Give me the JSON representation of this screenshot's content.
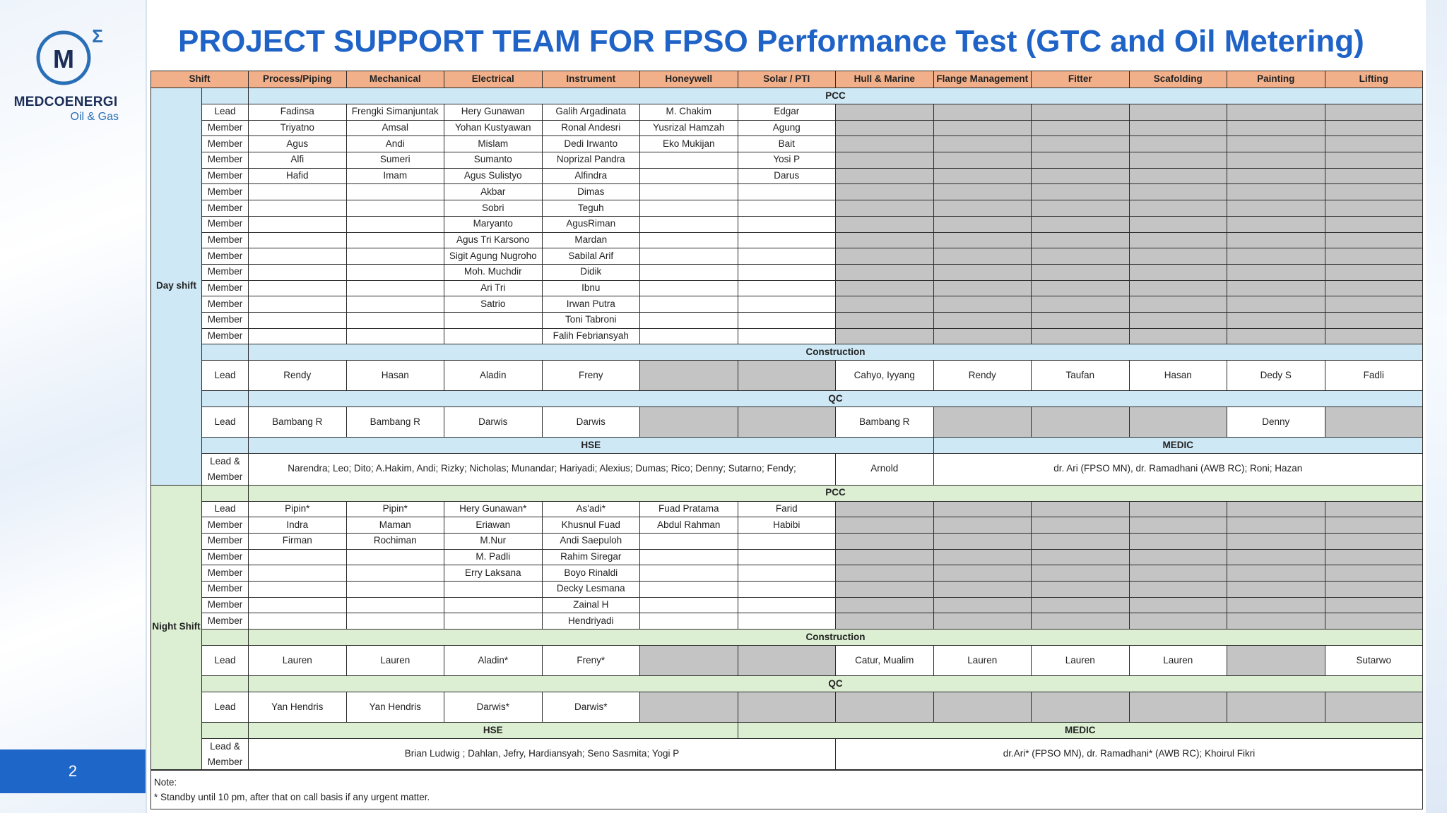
{
  "title": "PROJECT SUPPORT TEAM FOR FPSO Performance Test (GTC and Oil Metering)",
  "logo": {
    "name": "MEDCOENERGI",
    "sub": "Oil & Gas",
    "mark": "M"
  },
  "page_number": "2",
  "columns": [
    "Shift",
    "Process/Piping",
    "Mechanical",
    "Electrical",
    "Instrument",
    "Honeywell",
    "Solar / PTI",
    "Hull & Marine",
    "Flange Management",
    "Fitter",
    "Scafolding",
    "Painting",
    "Lifting"
  ],
  "day": {
    "shift_label": "Day shift",
    "pcc_title": "PCC",
    "pcc_rows": [
      {
        "role": "Lead",
        "cells": [
          "Fadinsa",
          "Frengki Simanjuntak",
          "Hery Gunawan",
          "Galih Argadinata",
          "M. Chakim",
          "Edgar"
        ]
      },
      {
        "role": "Member",
        "cells": [
          "Triyatno",
          "Amsal",
          "Yohan Kustyawan",
          "Ronal Andesri",
          "Yusrizal Hamzah",
          "Agung"
        ]
      },
      {
        "role": "Member",
        "cells": [
          "Agus",
          "Andi",
          "Mislam",
          "Dedi Irwanto",
          "Eko Mukijan",
          "Bait"
        ]
      },
      {
        "role": "Member",
        "cells": [
          "Alfi",
          "Sumeri",
          "Sumanto",
          "Noprizal Pandra",
          "",
          "Yosi P"
        ]
      },
      {
        "role": "Member",
        "cells": [
          "Hafid",
          "Imam",
          "Agus Sulistyo",
          "Alfindra",
          "",
          "Darus"
        ]
      },
      {
        "role": "Member",
        "cells": [
          "",
          "",
          "Akbar",
          "Dimas",
          "",
          ""
        ]
      },
      {
        "role": "Member",
        "cells": [
          "",
          "",
          "Sobri",
          "Teguh",
          "",
          ""
        ]
      },
      {
        "role": "Member",
        "cells": [
          "",
          "",
          "Maryanto",
          "AgusRiman",
          "",
          ""
        ]
      },
      {
        "role": "Member",
        "cells": [
          "",
          "",
          "Agus Tri Karsono",
          "Mardan",
          "",
          ""
        ]
      },
      {
        "role": "Member",
        "cells": [
          "",
          "",
          "Sigit Agung Nugroho",
          "Sabilal Arif",
          "",
          ""
        ]
      },
      {
        "role": "Member",
        "cells": [
          "",
          "",
          "Moh. Muchdir",
          "Didik",
          "",
          ""
        ]
      },
      {
        "role": "Member",
        "cells": [
          "",
          "",
          "Ari Tri",
          "Ibnu",
          "",
          ""
        ]
      },
      {
        "role": "Member",
        "cells": [
          "",
          "",
          "Satrio",
          "Irwan Putra",
          "",
          ""
        ]
      },
      {
        "role": "Member",
        "cells": [
          "",
          "",
          "",
          "Toni Tabroni",
          "",
          ""
        ]
      },
      {
        "role": "Member",
        "cells": [
          "",
          "",
          "",
          "Falih Febriansyah",
          "",
          ""
        ]
      }
    ],
    "construction_title": "Construction",
    "construction_lead": {
      "role": "Lead",
      "cells": [
        "Rendy",
        "Hasan",
        "Aladin",
        "Freny",
        "",
        "",
        "Cahyo, Iyyang",
        "Rendy",
        "Taufan",
        "Hasan",
        "Dedy S",
        "Fadli"
      ]
    },
    "qc_title": "QC",
    "qc_lead": {
      "role": "Lead",
      "cells": [
        "Bambang R",
        "Bambang R",
        "Darwis",
        "Darwis",
        "",
        "",
        "Bambang R",
        "",
        "",
        "",
        "Denny",
        ""
      ]
    },
    "hse_title": "HSE",
    "medic_title": "MEDIC",
    "hse_role": "Lead & Member",
    "hse_text": "Narendra; Leo; Dito; A.Hakim, Andi; Rizky; Nicholas; Munandar; Hariyadi; Alexius; Dumas; Rico; Denny; Sutarno; Fendy;",
    "hull_text": "Arnold",
    "medic_text": "dr. Ari (FPSO MN), dr. Ramadhani (AWB RC); Roni; Hazan"
  },
  "night": {
    "shift_label": "Night Shift",
    "pcc_title": "PCC",
    "pcc_rows": [
      {
        "role": "Lead",
        "cells": [
          "Pipin*",
          "Pipin*",
          "Hery Gunawan*",
          "As'adi*",
          "Fuad Pratama",
          "Farid"
        ]
      },
      {
        "role": "Member",
        "cells": [
          "Indra",
          "Maman",
          "Eriawan",
          "Khusnul Fuad",
          "Abdul Rahman",
          "Habibi"
        ]
      },
      {
        "role": "Member",
        "cells": [
          "Firman",
          "Rochiman",
          "M.Nur",
          "Andi Saepuloh",
          "",
          ""
        ]
      },
      {
        "role": "Member",
        "cells": [
          "",
          "",
          "M. Padli",
          "Rahim Siregar",
          "",
          ""
        ]
      },
      {
        "role": "Member",
        "cells": [
          "",
          "",
          "Erry Laksana",
          "Boyo Rinaldi",
          "",
          ""
        ]
      },
      {
        "role": "Member",
        "cells": [
          "",
          "",
          "",
          "Decky Lesmana",
          "",
          ""
        ]
      },
      {
        "role": "Member",
        "cells": [
          "",
          "",
          "",
          "Zainal H",
          "",
          ""
        ]
      },
      {
        "role": "Member",
        "cells": [
          "",
          "",
          "",
          "Hendriyadi",
          "",
          ""
        ]
      }
    ],
    "construction_title": "Construction",
    "construction_lead": {
      "role": "Lead",
      "cells": [
        "Lauren",
        "Lauren",
        "Aladin*",
        "Freny*",
        "",
        "",
        "Catur, Mualim",
        "Lauren",
        "Lauren",
        "Lauren",
        "",
        "Sutarwo"
      ]
    },
    "qc_title": "QC",
    "qc_lead": {
      "role": "Lead",
      "cells": [
        "Yan Hendris",
        "Yan Hendris",
        "Darwis*",
        "Darwis*",
        "",
        "",
        "",
        "",
        "",
        "",
        "",
        ""
      ]
    },
    "hse_title": "HSE",
    "medic_title": "MEDIC",
    "hse_role": "Lead & Member",
    "hse_text": "Brian Ludwig ; Dahlan, Jefry, Hardiansyah; Seno Sasmita; Yogi P",
    "medic_text": "dr.Ari* (FPSO MN), dr. Ramadhani* (AWB RC); Khoirul Fikri"
  },
  "notes": {
    "label": "Note:",
    "text": "* Standby until 10 pm, after that on call basis if any urgent matter."
  },
  "colors": {
    "title": "#1f63c7",
    "header": "#f2b08a",
    "day": "#cfe8f5",
    "night": "#dcefd3",
    "na": "#c4c4c4",
    "page_badge": "#1f66c9"
  }
}
